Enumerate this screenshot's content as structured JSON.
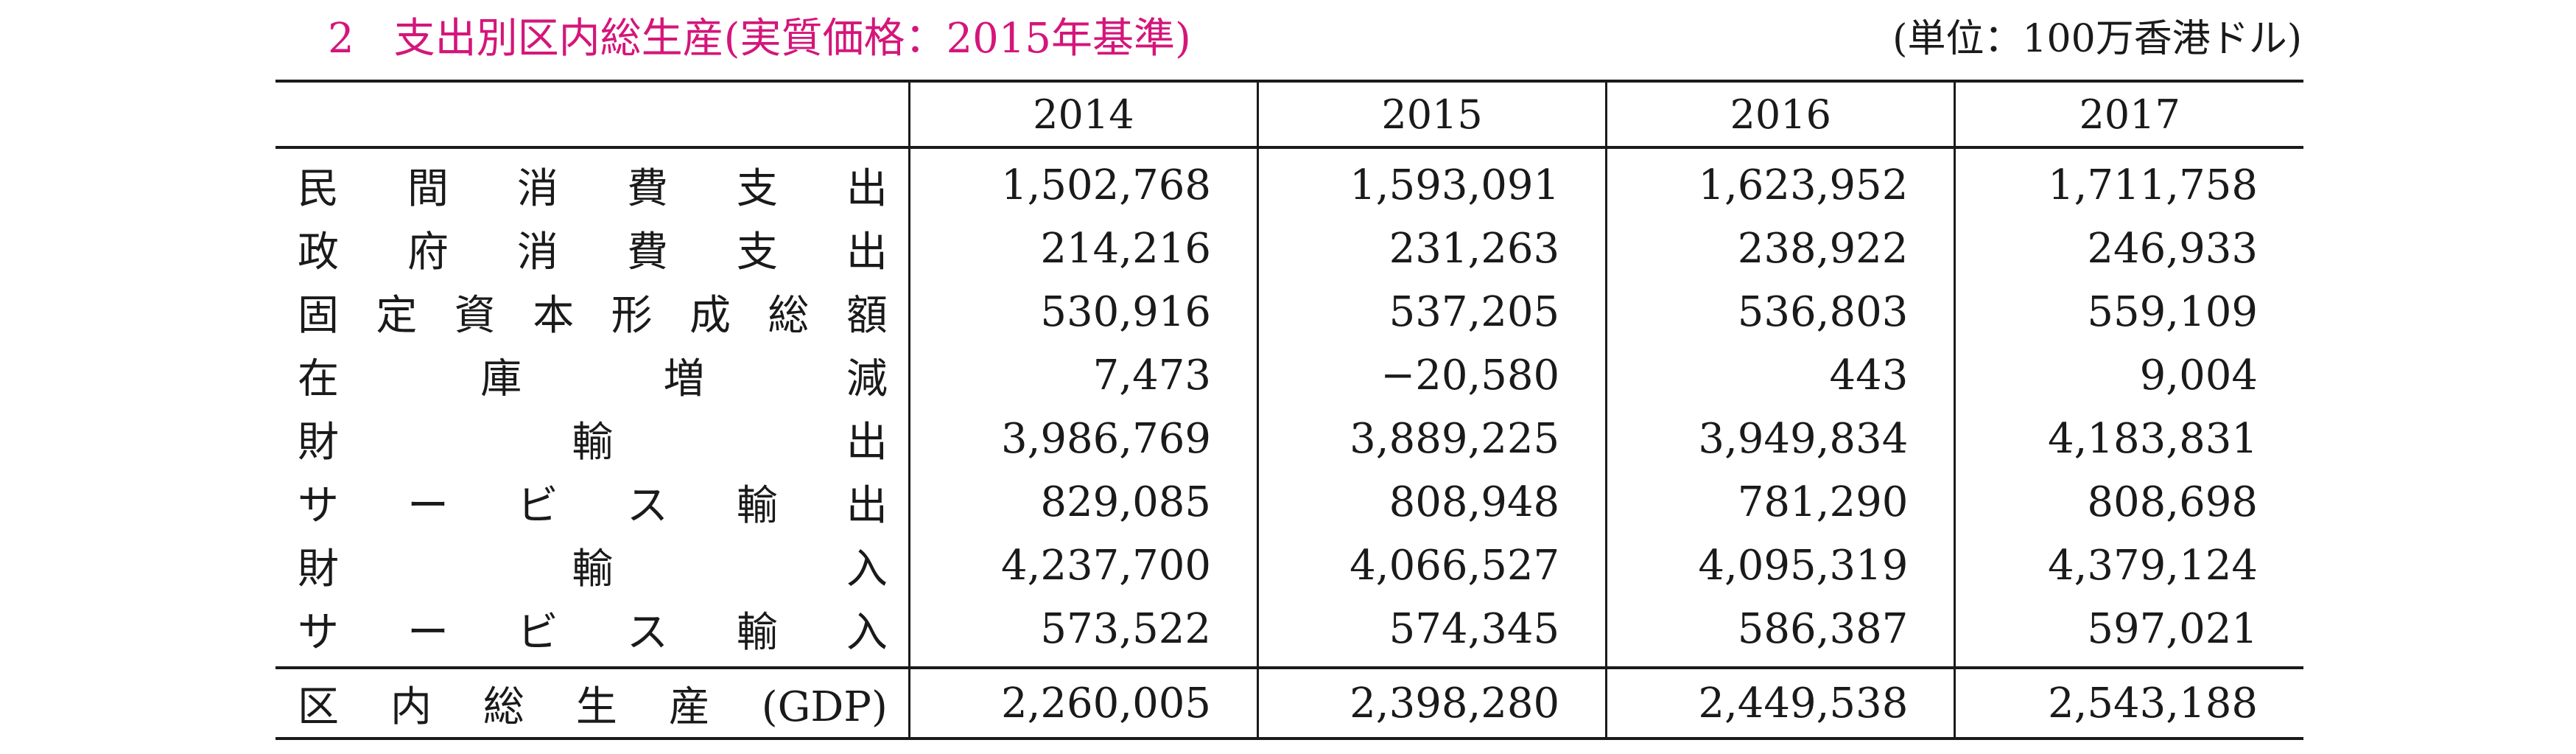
{
  "header": {
    "title_number": "2",
    "title": "支出別区内総生産(実質価格：2015年基準)",
    "unit": "(単位：100万香港ドル)"
  },
  "table": {
    "columns": [
      "",
      "2014",
      "2015",
      "2016",
      "2017"
    ],
    "rows": [
      {
        "label": "民間消費支出",
        "values": [
          "1,502,768",
          "1,593,091",
          "1,623,952",
          "1,711,758"
        ]
      },
      {
        "label": "政府消費支出",
        "values": [
          "214,216",
          "231,263",
          "238,922",
          "246,933"
        ]
      },
      {
        "label": "固定資本形成総額",
        "values": [
          "530,916",
          "537,205",
          "536,803",
          "559,109"
        ]
      },
      {
        "label": "在庫増減",
        "values": [
          "7,473",
          "−20,580",
          "443",
          "9,004"
        ]
      },
      {
        "label": "財輸出",
        "values": [
          "3,986,769",
          "3,889,225",
          "3,949,834",
          "4,183,831"
        ]
      },
      {
        "label": "サービス輸出",
        "values": [
          "829,085",
          "808,948",
          "781,290",
          "808,698"
        ]
      },
      {
        "label": "財輸入",
        "values": [
          "4,237,700",
          "4,066,527",
          "4,095,319",
          "4,379,124"
        ]
      },
      {
        "label": "サービス輸入",
        "values": [
          "573,522",
          "574,345",
          "586,387",
          "597,021"
        ]
      }
    ],
    "total": {
      "label": "区内総生産(GDP)",
      "values": [
        "2,260,005",
        "2,398,280",
        "2,449,538",
        "2,543,188"
      ]
    }
  }
}
